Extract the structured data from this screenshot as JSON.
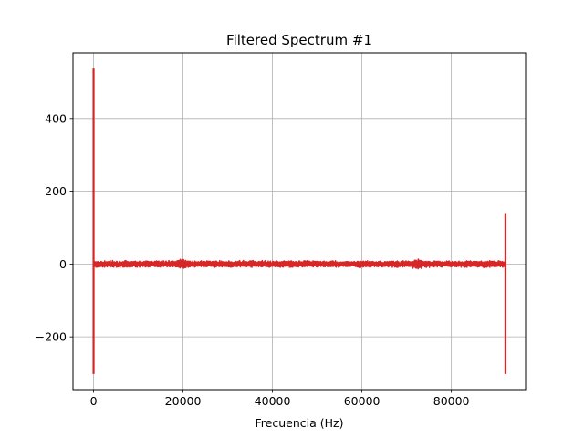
{
  "chart_data": {
    "type": "line",
    "title": "Filtered Spectrum #1",
    "xlabel": "Frecuencia (Hz)",
    "ylabel": "",
    "xlim": [
      -4600,
      96600
    ],
    "ylim": [
      -345,
      580
    ],
    "xticks": [
      0,
      20000,
      40000,
      60000,
      80000
    ],
    "yticks": [
      -200,
      0,
      200,
      400
    ],
    "xtick_labels": [
      "0",
      "20000",
      "40000",
      "60000",
      "80000"
    ],
    "ytick_labels": [
      "−200",
      "0",
      "200",
      "400"
    ],
    "grid": true,
    "series": [
      {
        "color": "#d62728",
        "x_range": [
          0,
          92100
        ],
        "baseline_noise_amplitude": 8,
        "features": [
          {
            "x": 0,
            "max": 537,
            "min": -302
          },
          {
            "x": 92100,
            "max": 140,
            "min": -302
          }
        ],
        "noise_bumps": [
          {
            "x": 20000,
            "amplitude": 15
          },
          {
            "x": 72500,
            "amplitude": 15
          }
        ]
      }
    ]
  }
}
